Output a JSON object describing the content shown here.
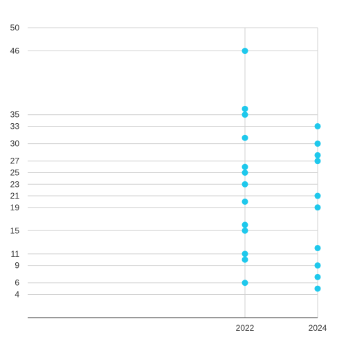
{
  "chart_data": {
    "type": "scatter",
    "title": "",
    "xlabel": "",
    "ylabel": "",
    "x_ticks": [
      "2022",
      "2024"
    ],
    "y_ticks": [
      4,
      6,
      9,
      11,
      15,
      19,
      21,
      23,
      25,
      27,
      30,
      33,
      35,
      46,
      50
    ],
    "ylim": [
      0,
      50
    ],
    "grid": true,
    "legend": "none",
    "point_color": "#1ec8ec",
    "series": [
      {
        "points": [
          {
            "x": "2022",
            "y": 46
          },
          {
            "x": "2022",
            "y": 36
          },
          {
            "x": "2022",
            "y": 35
          },
          {
            "x": "2022",
            "y": 31
          },
          {
            "x": "2022",
            "y": 26
          },
          {
            "x": "2022",
            "y": 25
          },
          {
            "x": "2022",
            "y": 23
          },
          {
            "x": "2022",
            "y": 20
          },
          {
            "x": "2022",
            "y": 16
          },
          {
            "x": "2022",
            "y": 15
          },
          {
            "x": "2022",
            "y": 11
          },
          {
            "x": "2022",
            "y": 10
          },
          {
            "x": "2022",
            "y": 6
          },
          {
            "x": "2024",
            "y": 33
          },
          {
            "x": "2024",
            "y": 30
          },
          {
            "x": "2024",
            "y": 28
          },
          {
            "x": "2024",
            "y": 27
          },
          {
            "x": "2024",
            "y": 21
          },
          {
            "x": "2024",
            "y": 19
          },
          {
            "x": "2024",
            "y": 12
          },
          {
            "x": "2024",
            "y": 9
          },
          {
            "x": "2024",
            "y": 7
          },
          {
            "x": "2024",
            "y": 5
          }
        ]
      }
    ]
  }
}
